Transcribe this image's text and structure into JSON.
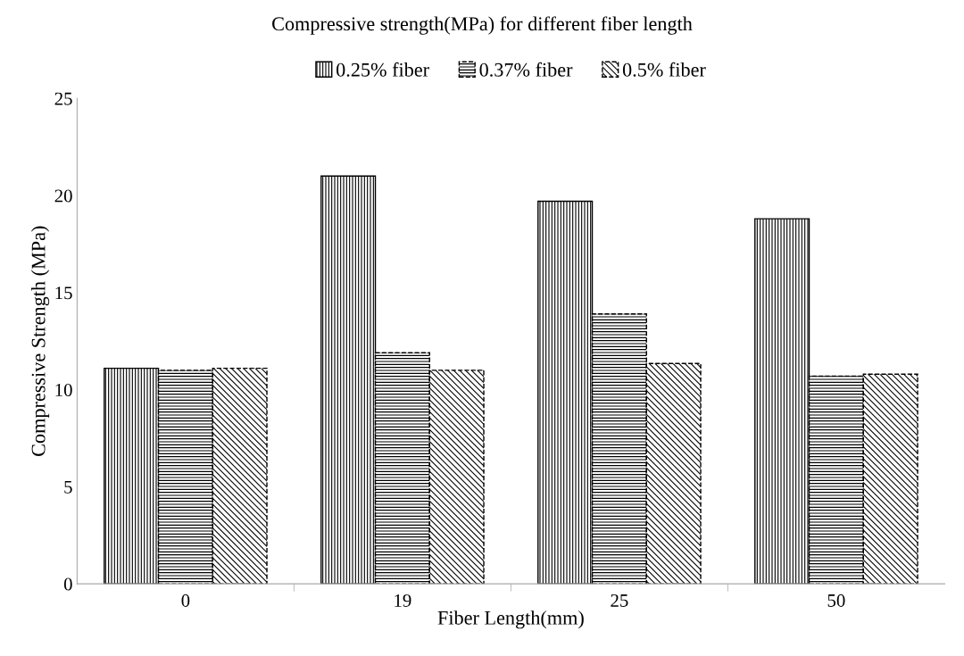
{
  "chart_data": {
    "type": "bar",
    "title": "Compressive strength(MPa) for different fiber length",
    "xlabel": "Fiber Length(mm)",
    "ylabel": "Compressive Strength (MPa)",
    "categories": [
      "0",
      "19",
      "25",
      "50"
    ],
    "series": [
      {
        "name": "0.25% fiber",
        "color": "#000000",
        "values": [
          11.1,
          21.0,
          19.7,
          18.8
        ]
      },
      {
        "name": "0.37% fiber",
        "color": "#000000",
        "values": [
          11.0,
          11.9,
          13.9,
          10.7
        ]
      },
      {
        "name": "0.5% fiber",
        "color": "#000000",
        "values": [
          11.1,
          11.0,
          11.35,
          10.8
        ]
      }
    ],
    "ylim": [
      0,
      25
    ],
    "yticks": [
      0,
      5,
      10,
      15,
      20,
      25
    ],
    "grid": false,
    "legend": "top"
  }
}
